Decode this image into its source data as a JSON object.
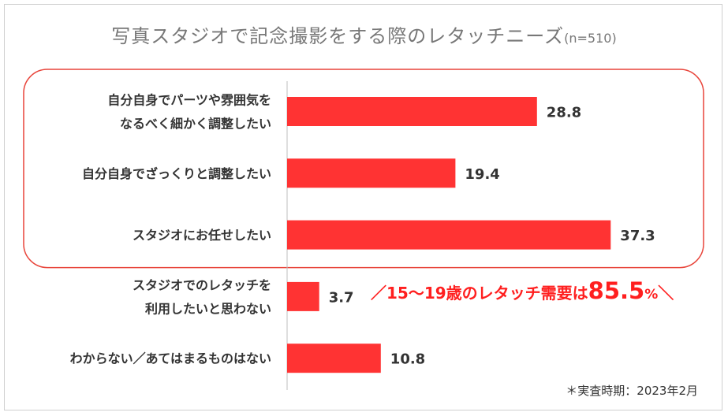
{
  "title": "写真スタジオで記念撮影をする際のレタッチニーズ",
  "title_n": "(n=510)",
  "callout": {
    "slash_left": "／",
    "text": "15～19歳のレタッチ需要は",
    "value": "85.5",
    "unit": "%",
    "slash_right": "＼"
  },
  "footnote": "＊実査時期：2023年2月",
  "colors": {
    "bar": "#ff3333",
    "highlight_box": "#e8443a",
    "callout": "#ff1f1f"
  },
  "chart_data": {
    "type": "bar",
    "orientation": "horizontal",
    "categories": [
      [
        "自分自身でパーツや雰囲気を",
        "なるべく細かく調整したい"
      ],
      [
        "自分自身でざっくりと調整したい"
      ],
      [
        "スタジオにお任せしたい"
      ],
      [
        "スタジオでのレタッチを",
        "利用したいと思わない"
      ],
      [
        "わからない／あてはまるものはない"
      ]
    ],
    "values": [
      28.8,
      19.4,
      37.3,
      3.7,
      10.8
    ],
    "value_labels": [
      "28.8",
      "19.4",
      "37.3",
      "3.7",
      "10.8"
    ],
    "unit": "%",
    "xlim": [
      0,
      40
    ],
    "highlighted_categories": [
      0,
      1,
      2
    ]
  }
}
